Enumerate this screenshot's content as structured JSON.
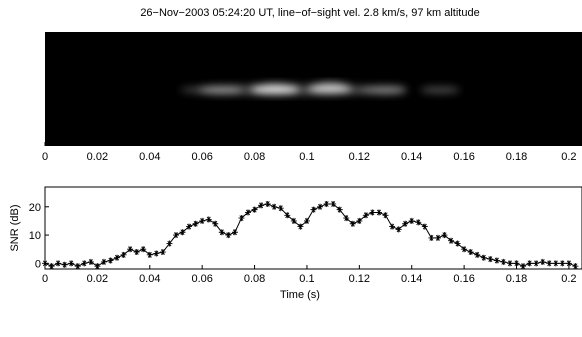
{
  "chart_data": [
    {
      "type": "image",
      "title": "26−Nov−2003 05:24:20 UT, line−of−sight vel. 2.8 km/s, 97 km altitude",
      "xlim": [
        0,
        0.205
      ],
      "xticks": [
        0,
        0.02,
        0.04,
        0.06,
        0.08,
        0.1,
        0.12,
        0.14,
        0.16,
        0.18,
        0.2
      ]
    },
    {
      "type": "line",
      "xlabel": "Time (s)",
      "ylabel": "SNR (dB)",
      "color": "#000000",
      "xlim": [
        0,
        0.205
      ],
      "xticks": [
        0,
        0.02,
        0.04,
        0.06,
        0.08,
        0.1,
        0.12,
        0.14,
        0.16,
        0.18,
        0.2
      ],
      "ylim": [
        -2,
        27
      ],
      "yticks": [
        0,
        10,
        20
      ],
      "x": [
        0,
        0.0025,
        0.005,
        0.0075,
        0.01,
        0.0125,
        0.015,
        0.0175,
        0.02,
        0.0225,
        0.025,
        0.0275,
        0.03,
        0.0325,
        0.035,
        0.0375,
        0.04,
        0.0425,
        0.045,
        0.0475,
        0.05,
        0.0525,
        0.055,
        0.0575,
        0.06,
        0.0625,
        0.065,
        0.0675,
        0.07,
        0.0725,
        0.075,
        0.0775,
        0.08,
        0.0825,
        0.085,
        0.0875,
        0.09,
        0.0925,
        0.095,
        0.0975,
        0.1,
        0.1025,
        0.105,
        0.1075,
        0.11,
        0.1125,
        0.115,
        0.1175,
        0.12,
        0.1225,
        0.125,
        0.1275,
        0.13,
        0.1325,
        0.135,
        0.1375,
        0.14,
        0.1425,
        0.145,
        0.1475,
        0.15,
        0.1525,
        0.155,
        0.1575,
        0.16,
        0.1625,
        0.165,
        0.1675,
        0.17,
        0.1725,
        0.175,
        0.1775,
        0.18,
        0.1825,
        0.185,
        0.1875,
        0.19,
        0.1925,
        0.195,
        0.1975,
        0.2,
        0.2025
      ],
      "values": [
        0,
        -1,
        0,
        -0.5,
        0,
        -1,
        0,
        0.5,
        -1,
        0.5,
        1,
        2,
        3,
        5,
        4,
        5,
        3,
        3.5,
        4,
        7,
        10,
        11,
        13,
        14,
        15,
        15.5,
        14,
        11,
        10,
        11,
        16,
        18,
        19,
        20.5,
        21,
        20,
        19.5,
        17,
        15,
        13,
        15,
        19,
        20,
        21,
        21,
        19,
        16,
        14,
        15,
        17,
        18,
        18,
        17,
        13,
        12,
        14,
        15,
        14.5,
        13,
        9,
        9,
        10,
        8,
        7,
        5,
        4,
        3,
        2,
        1.5,
        1,
        0.5,
        0,
        0,
        -1,
        0,
        0,
        0.5,
        0,
        0,
        0,
        0,
        -1
      ]
    }
  ]
}
